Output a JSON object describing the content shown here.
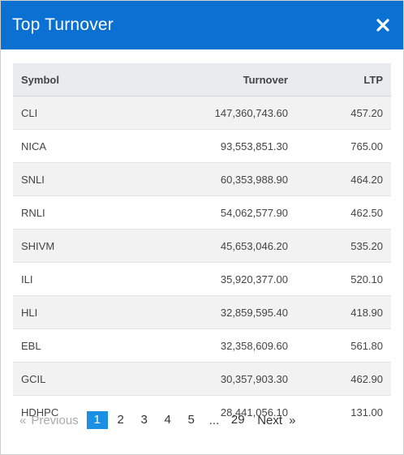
{
  "modal": {
    "title": "Top Turnover",
    "close_symbol": "×"
  },
  "table": {
    "headers": [
      "Symbol",
      "Turnover",
      "LTP"
    ],
    "rows": [
      {
        "symbol": "CLI",
        "turnover": "147,360,743.60",
        "ltp": "457.20"
      },
      {
        "symbol": "NICA",
        "turnover": "93,553,851.30",
        "ltp": "765.00"
      },
      {
        "symbol": "SNLI",
        "turnover": "60,353,988.90",
        "ltp": "464.20"
      },
      {
        "symbol": "RNLI",
        "turnover": "54,062,577.90",
        "ltp": "462.50"
      },
      {
        "symbol": "SHIVM",
        "turnover": "45,653,046.20",
        "ltp": "535.20"
      },
      {
        "symbol": "ILI",
        "turnover": "35,920,377.00",
        "ltp": "520.10"
      },
      {
        "symbol": "HLI",
        "turnover": "32,859,595.40",
        "ltp": "418.90"
      },
      {
        "symbol": "EBL",
        "turnover": "32,358,609.60",
        "ltp": "561.80"
      },
      {
        "symbol": "GCIL",
        "turnover": "30,357,903.30",
        "ltp": "462.90"
      },
      {
        "symbol": "HDHPC",
        "turnover": "28,441,056.10",
        "ltp": "131.00"
      }
    ]
  },
  "pagination": {
    "prev_arrow": "«",
    "prev_label": "Previous",
    "pages": [
      "1",
      "2",
      "3",
      "4",
      "5"
    ],
    "ellipsis": "...",
    "last_page": "29",
    "next_label": "Next",
    "next_arrow": "»",
    "current_page": "1"
  },
  "colors": {
    "header_bg": "#0a70d1",
    "active_page": "#1a8fe3"
  }
}
